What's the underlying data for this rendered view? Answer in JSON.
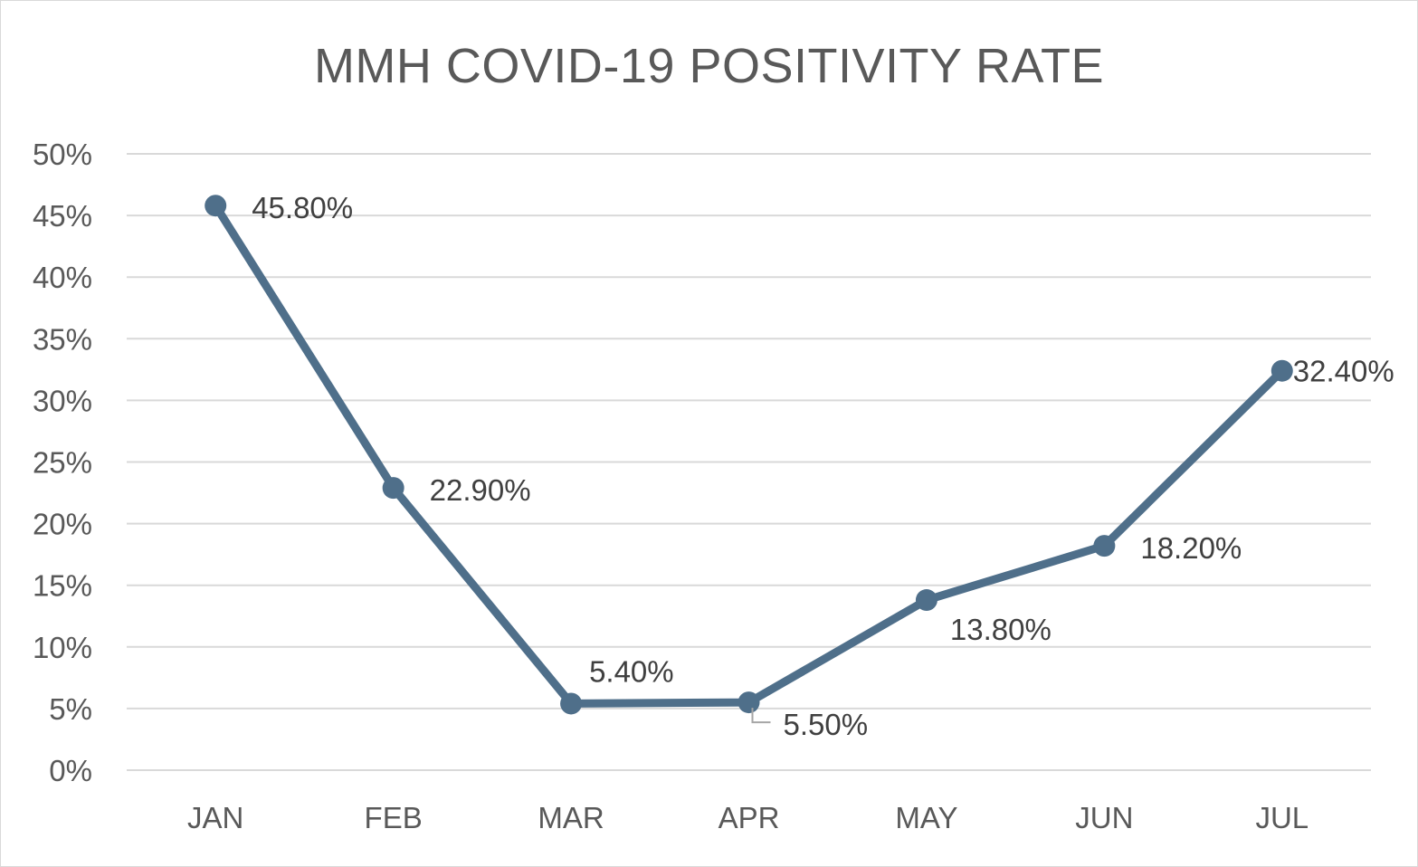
{
  "chart_data": {
    "type": "line",
    "title": "MMH COVID-19 POSITIVITY RATE",
    "xlabel": "",
    "ylabel": "",
    "categories": [
      "JAN",
      "FEB",
      "MAR",
      "APR",
      "MAY",
      "JUN",
      "JUL"
    ],
    "series": [
      {
        "values": [
          45.8,
          22.9,
          5.4,
          5.5,
          13.8,
          18.2,
          32.4
        ],
        "data_labels": [
          "45.80%",
          "22.90%",
          "5.40%",
          "5.50%",
          "13.80%",
          "18.20%",
          "32.40%"
        ],
        "color": "#4f6f8a"
      }
    ],
    "ylim": [
      0,
      50
    ],
    "y_ticks": [
      0,
      5,
      10,
      15,
      20,
      25,
      30,
      35,
      40,
      45,
      50
    ],
    "y_tick_labels": [
      "0%",
      "5%",
      "10%",
      "15%",
      "20%",
      "25%",
      "30%",
      "35%",
      "40%",
      "45%",
      "50%"
    ],
    "grid": true,
    "legend": "none",
    "colors": {
      "line": "#4f6f8a",
      "grid": "#d9d9d9",
      "axis_text": "#595959",
      "label_text": "#404040",
      "leader_line": "#a6a6a6"
    }
  }
}
